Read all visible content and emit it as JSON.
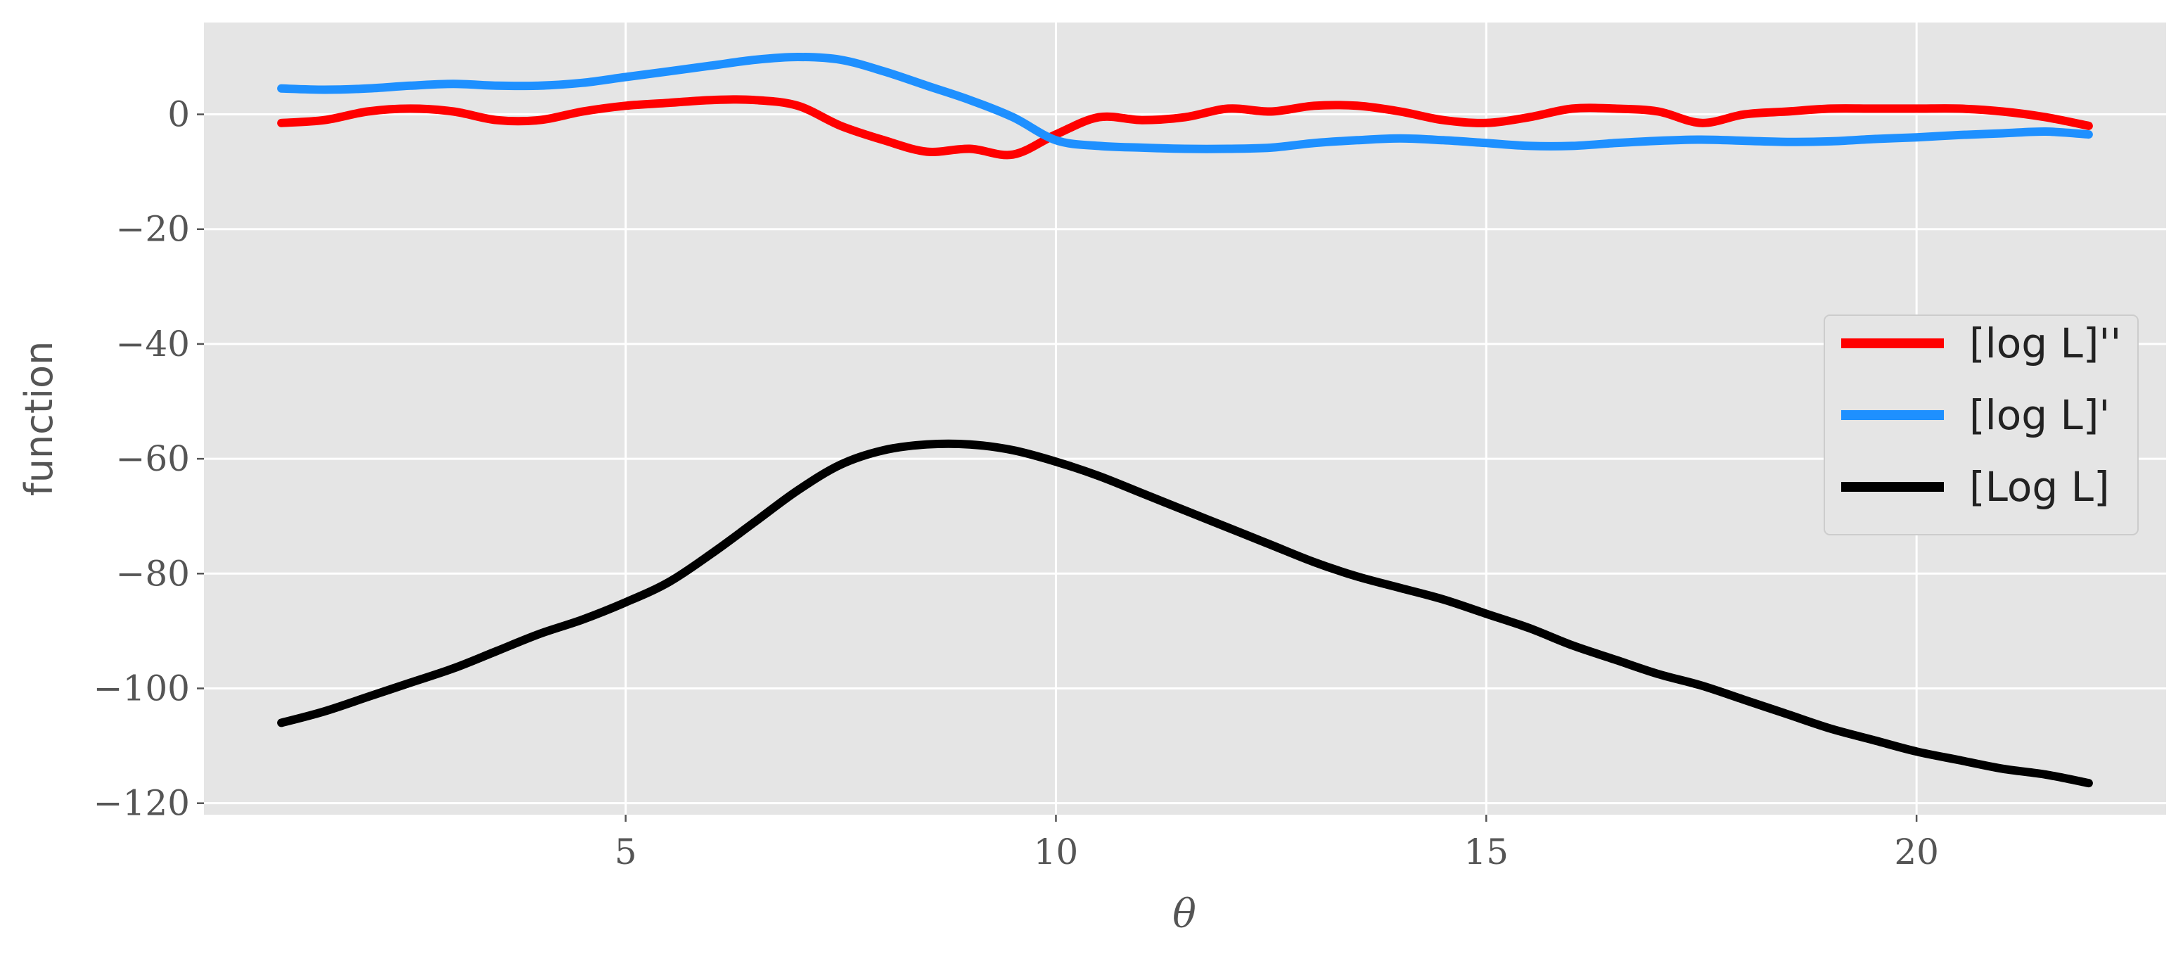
{
  "chart_data": {
    "type": "line",
    "xlabel": "θ",
    "ylabel": "function",
    "xlim": [
      0.1,
      22.9
    ],
    "ylim": [
      -122,
      16
    ],
    "xticks": [
      5,
      10,
      15,
      20
    ],
    "xtick_labels": [
      "5",
      "10",
      "15",
      "20"
    ],
    "yticks": [
      0,
      -20,
      -40,
      -60,
      -80,
      -100,
      -120
    ],
    "ytick_labels": [
      "0",
      "−20",
      "−40",
      "−60",
      "−80",
      "−100",
      "−120"
    ],
    "grid": true,
    "legend_position": "center-right",
    "background": "#e5e5e5",
    "series": [
      {
        "name": "[log L]''",
        "color": "#ff0000",
        "x": [
          1,
          1.5,
          2,
          2.5,
          3,
          3.5,
          4,
          4.5,
          5,
          5.5,
          6,
          6.5,
          7,
          7.5,
          8,
          8.5,
          9,
          9.5,
          10,
          10.5,
          11,
          11.5,
          12,
          12.5,
          13,
          13.5,
          14,
          14.5,
          15,
          15.5,
          16,
          16.5,
          17,
          17.5,
          18,
          18.5,
          19,
          19.5,
          20,
          20.5,
          21,
          21.5,
          22
        ],
        "y": [
          -1.5,
          -1,
          0.5,
          1,
          0.5,
          -1,
          -1,
          0.5,
          1.5,
          2,
          2.5,
          2.5,
          1.5,
          -2,
          -4.5,
          -6.5,
          -6,
          -7,
          -3.5,
          -0.5,
          -1,
          -0.5,
          1,
          0.5,
          1.5,
          1.5,
          0.5,
          -1,
          -1.5,
          -0.5,
          1,
          1,
          0.5,
          -1.5,
          0,
          0.5,
          1,
          1,
          1,
          1,
          0.5,
          -0.5,
          -2
        ]
      },
      {
        "name": "[log L]'",
        "color": "#1e90ff",
        "x": [
          1,
          1.5,
          2,
          2.5,
          3,
          3.5,
          4,
          4.5,
          5,
          5.5,
          6,
          6.5,
          7,
          7.5,
          8,
          8.5,
          9,
          9.5,
          10,
          10.5,
          11,
          11.5,
          12,
          12.5,
          13,
          13.5,
          14,
          14.5,
          15,
          15.5,
          16,
          16.5,
          17,
          17.5,
          18,
          18.5,
          19,
          19.5,
          20,
          20.5,
          21,
          21.5,
          22
        ],
        "y": [
          4.5,
          4.3,
          4.5,
          5,
          5.3,
          5,
          5,
          5.5,
          6.5,
          7.5,
          8.5,
          9.5,
          10,
          9.5,
          7.5,
          5,
          2.5,
          -0.5,
          -4.5,
          -5.5,
          -5.8,
          -6,
          -6,
          -5.8,
          -5,
          -4.5,
          -4.2,
          -4.5,
          -5,
          -5.5,
          -5.5,
          -5,
          -4.6,
          -4.4,
          -4.6,
          -4.8,
          -4.7,
          -4.3,
          -4,
          -3.6,
          -3.3,
          -3,
          -3.5
        ]
      },
      {
        "name": "[Log L]",
        "color": "#000000",
        "x": [
          1,
          1.5,
          2,
          2.5,
          3,
          3.5,
          4,
          4.5,
          5,
          5.5,
          6,
          6.5,
          7,
          7.5,
          8,
          8.5,
          9,
          9.5,
          10,
          10.5,
          11,
          11.5,
          12,
          12.5,
          13,
          13.5,
          14,
          14.5,
          15,
          15.5,
          16,
          16.5,
          17,
          17.5,
          18,
          18.5,
          19,
          19.5,
          20,
          20.5,
          21,
          21.5,
          22
        ],
        "y": [
          -106,
          -104,
          -101.5,
          -99,
          -96.5,
          -93.5,
          -90.5,
          -88,
          -85,
          -81.5,
          -76.5,
          -71,
          -65.5,
          -61,
          -58.5,
          -57.5,
          -57.5,
          -58.5,
          -60.5,
          -63,
          -66,
          -69,
          -72,
          -75,
          -78,
          -80.5,
          -82.5,
          -84.5,
          -87,
          -89.5,
          -92.5,
          -95,
          -97.5,
          -99.5,
          -102,
          -104.5,
          -107,
          -109,
          -111,
          -112.5,
          -114,
          -115,
          -116.5
        ]
      }
    ]
  }
}
